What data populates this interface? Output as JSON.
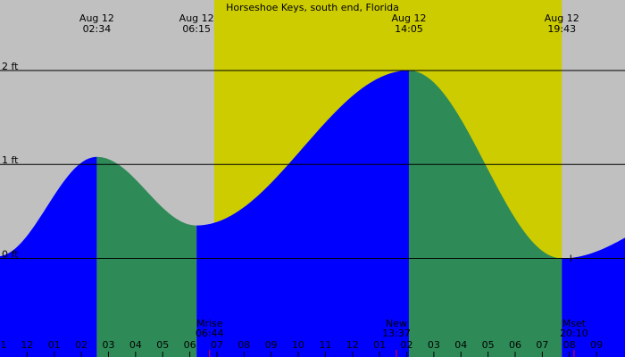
{
  "chart_data": {
    "type": "area",
    "title": "Horseshoe Keys, south end, Florida",
    "ylabel": "",
    "xlabel": "",
    "y_unit": "ft",
    "ylim": [
      -1.05,
      2.75
    ],
    "xlim": [
      23.0,
      46.05
    ],
    "y_ticks": [
      {
        "value": 2,
        "label": "2 ft"
      },
      {
        "value": 1,
        "label": "1 ft"
      },
      {
        "value": 0,
        "label": "0 ft"
      }
    ],
    "x_tick_labels": [
      {
        "hour": 24,
        "label": "12"
      },
      {
        "hour": 25,
        "label": "01"
      },
      {
        "hour": 26,
        "label": "02"
      },
      {
        "hour": 27,
        "label": "03"
      },
      {
        "hour": 28,
        "label": "04"
      },
      {
        "hour": 29,
        "label": "05"
      },
      {
        "hour": 30,
        "label": "06"
      },
      {
        "hour": 31,
        "label": "07"
      },
      {
        "hour": 32,
        "label": "08"
      },
      {
        "hour": 33,
        "label": "09"
      },
      {
        "hour": 34,
        "label": "10"
      },
      {
        "hour": 35,
        "label": "11"
      },
      {
        "hour": 36,
        "label": "12"
      },
      {
        "hour": 37,
        "label": "01"
      },
      {
        "hour": 38,
        "label": "02"
      },
      {
        "hour": 39,
        "label": "03"
      },
      {
        "hour": 40,
        "label": "04"
      },
      {
        "hour": 41,
        "label": "05"
      },
      {
        "hour": 42,
        "label": "06"
      },
      {
        "hour": 43,
        "label": "07"
      },
      {
        "hour": 44,
        "label": "08"
      },
      {
        "hour": 45,
        "label": "09"
      }
    ],
    "edge_label": "1",
    "daylight": {
      "start_hour": 30.9,
      "end_hour": 43.72
    },
    "tide_extremes": [
      {
        "hour": 26.57,
        "height": 1.08,
        "type": "high",
        "date_label": "Aug 12",
        "time_label": "02:34"
      },
      {
        "hour": 30.25,
        "height": 0.35,
        "type": "low",
        "date_label": "Aug 12",
        "time_label": "06:15"
      },
      {
        "hour": 38.08,
        "height": 2.0,
        "type": "high",
        "date_label": "Aug 12",
        "time_label": "14:05"
      },
      {
        "hour": 43.72,
        "height": 0.0,
        "type": "low",
        "date_label": "Aug 12",
        "time_label": "19:43"
      }
    ],
    "curve_endpoints": [
      {
        "hour": 23.0,
        "height": 0.55
      },
      {
        "hour": 46.05,
        "height": 0.22
      }
    ],
    "events": [
      {
        "hour": 30.73,
        "name": "Mrise",
        "time_label": "06:44"
      },
      {
        "hour": 37.62,
        "name": "New",
        "time_label": "13:37"
      },
      {
        "hour": 44.17,
        "name": "Mset",
        "time_label": "20:10"
      }
    ],
    "colors": {
      "background": "#c0c0c0",
      "daylight": "#cccc00",
      "rising": "#0000ff",
      "falling": "#2e8b57",
      "line": "#000000",
      "event_tick": "#ff0000"
    }
  }
}
